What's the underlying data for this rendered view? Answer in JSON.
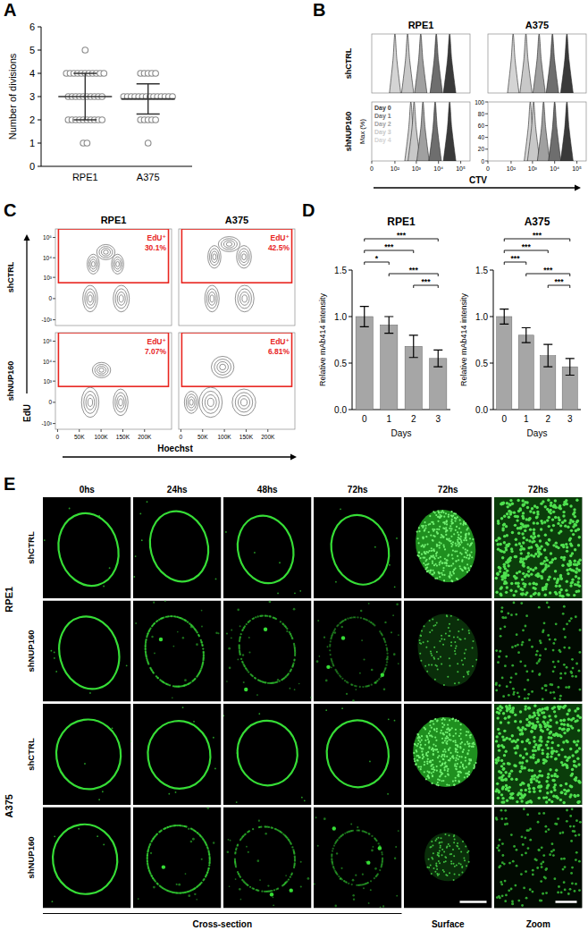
{
  "panel_labels": [
    "A",
    "B",
    "C",
    "D",
    "E"
  ],
  "chart_data": [
    {
      "type": "dot",
      "categories": [
        "RPE1",
        "A375"
      ],
      "y_label": "Number of divisions",
      "ylim": [
        0,
        6
      ],
      "yticks": [
        0,
        1,
        2,
        3,
        4,
        5,
        6
      ],
      "color": "#8a8a8a",
      "values": [
        [
          5,
          4,
          4,
          4,
          4,
          4,
          4,
          4,
          4,
          4,
          4,
          4,
          3,
          3,
          3,
          3,
          3,
          3,
          3,
          3,
          3,
          3,
          2,
          2,
          2,
          2,
          2,
          2,
          2,
          2,
          2,
          2,
          1,
          1
        ],
        [
          4,
          4,
          4,
          4,
          4,
          3,
          3,
          3,
          3,
          3,
          3,
          3,
          3,
          3,
          3,
          3,
          3,
          3,
          3,
          2,
          2,
          2,
          2,
          2,
          1
        ]
      ],
      "mean": [
        3.0,
        2.9
      ],
      "error": [
        1.0,
        0.65
      ]
    },
    {
      "type": "area",
      "title": "RPE1",
      "row_label": "shCTRL",
      "log": "x",
      "xlim": [
        0,
        262144
      ],
      "ylim": [
        0,
        100
      ],
      "series": [
        {
          "color": "#3a3a3a",
          "x": [
            16600,
            25120,
            31620,
            39810,
            60260
          ],
          "values": [
            0,
            55,
            100,
            55,
            0
          ]
        },
        {
          "color": "#6e6e6e",
          "x": [
            4170,
            6310,
            7940,
            10000,
            15140
          ],
          "values": [
            0,
            55,
            100,
            55,
            0
          ]
        },
        {
          "color": "#a0a0a0",
          "x": [
            832,
            1259,
            1585,
            1995,
            3020
          ],
          "values": [
            0,
            55,
            100,
            55,
            0
          ]
        },
        {
          "color": "#c8c8c8",
          "x": [
            209,
            316,
            398,
            501,
            759
          ],
          "values": [
            0,
            55,
            100,
            55,
            0
          ]
        },
        {
          "color": "#d4d4d4",
          "x": [
            52.5,
            79.4,
            100,
            126,
            191
          ],
          "values": [
            0,
            55,
            100,
            55,
            0
          ]
        }
      ]
    },
    {
      "type": "area",
      "title": "A375",
      "log": "x",
      "xlim": [
        0,
        262144
      ],
      "ylim": [
        0,
        100
      ],
      "series": [
        {
          "color": "#3a3a3a",
          "x": [
            18620,
            28180,
            35480,
            44670,
            67610
          ],
          "values": [
            0,
            55,
            100,
            55,
            0
          ]
        },
        {
          "color": "#6e6e6e",
          "x": [
            4170,
            6310,
            7940,
            10000,
            15140
          ],
          "values": [
            0,
            55,
            100,
            55,
            0
          ]
        },
        {
          "color": "#a0a0a0",
          "x": [
            1047,
            1585,
            1995,
            2512,
            3802
          ],
          "values": [
            0,
            55,
            100,
            55,
            0
          ]
        },
        {
          "color": "#c8c8c8",
          "x": [
            263,
            398,
            501,
            631,
            955
          ],
          "values": [
            0,
            55,
            100,
            55,
            0
          ]
        },
        {
          "color": "#d4d4d4",
          "x": [
            66.1,
            100,
            126,
            158,
            240
          ],
          "values": [
            0,
            55,
            100,
            55,
            0
          ]
        }
      ]
    },
    {
      "type": "area",
      "row_label": "shNUP160",
      "y_label": "Max (%)",
      "legend": "upper-left",
      "log": "x",
      "xlim": [
        0,
        262144
      ],
      "ylim": [
        0,
        100
      ],
      "xticks": [
        0,
        {
          "value": 100,
          "label": "10²"
        },
        {
          "value": 1000,
          "label": "10³"
        },
        {
          "value": 10000,
          "label": "10⁴"
        },
        {
          "value": 100000,
          "label": "10⁵"
        }
      ],
      "series": [
        {
          "name": "Day 0",
          "color": "#3a3a3a",
          "x": [
            16600,
            25120,
            31620,
            39810,
            60260
          ],
          "values": [
            0,
            55,
            100,
            55,
            0
          ]
        },
        {
          "name": "Day 1",
          "color": "#6e6e6e",
          "x": [
            3715,
            5623,
            7079,
            8913,
            13490
          ],
          "values": [
            0,
            55,
            100,
            55,
            0
          ]
        },
        {
          "name": "Day 2",
          "color": "#a0a0a0",
          "x": [
            1047,
            1585,
            1995,
            2512,
            3802
          ],
          "values": [
            0,
            55,
            100,
            55,
            0
          ]
        },
        {
          "name": "Day 3",
          "color": "#c8c8c8",
          "x": [
            417,
            631,
            794,
            1000,
            1514
          ],
          "values": [
            0,
            55,
            100,
            55,
            0
          ]
        },
        {
          "name": "Day 4",
          "color": "#d4d4d4",
          "x": [
            295,
            447,
            562,
            708,
            1072
          ],
          "values": [
            0,
            55,
            100,
            55,
            0
          ]
        }
      ]
    },
    {
      "type": "area",
      "x_label": "CTV",
      "log": "x",
      "xlim": [
        0,
        262144
      ],
      "ylim": [
        0,
        100
      ],
      "xticks": [
        0,
        {
          "value": 100,
          "label": "10²"
        },
        {
          "value": 1000,
          "label": "10³"
        },
        {
          "value": 10000,
          "label": "10⁴"
        },
        {
          "value": 100000,
          "label": "10⁵"
        }
      ],
      "yticks": [
        0,
        20,
        40,
        60,
        80,
        100
      ],
      "series": [
        {
          "color": "#3a3a3a",
          "x": [
            18620,
            28180,
            35480,
            44670,
            67610
          ],
          "values": [
            0,
            55,
            100,
            55,
            0
          ]
        },
        {
          "color": "#6e6e6e",
          "x": [
            5250,
            7940,
            10000,
            12590,
            19050
          ],
          "values": [
            0,
            55,
            100,
            55,
            0
          ]
        },
        {
          "color": "#a0a0a0",
          "x": [
            1660,
            2512,
            3162,
            3981,
            6026
          ],
          "values": [
            0,
            55,
            100,
            55,
            0
          ]
        },
        {
          "color": "#c8c8c8",
          "x": [
            589,
            891,
            1122,
            1413,
            2138
          ],
          "values": [
            0,
            55,
            100,
            55,
            0
          ]
        },
        {
          "color": "#d4d4d4",
          "x": [
            417,
            631,
            794,
            1000,
            1514
          ],
          "values": [
            0,
            55,
            100,
            55,
            0
          ]
        }
      ]
    },
    {
      "type": "contour",
      "title": "RPE1",
      "row_label": "shCTRL",
      "log": "y",
      "xlim": [
        -5000,
        262144
      ],
      "ylim": [
        -2000,
        262144
      ],
      "color": "#e8251f",
      "yticks": [
        {
          "value": -1000,
          "label": "-10³"
        },
        0,
        {
          "value": 1000,
          "label": "10³"
        },
        {
          "value": 10000,
          "label": "10⁴"
        },
        {
          "value": 100000,
          "label": "10⁵"
        }
      ],
      "gate": {
        "x": [
          2000,
          255000
        ],
        "y": [
          500,
          262144
        ]
      },
      "annotations": [
        "EdU⁺",
        "30.1%"
      ],
      "clusters": [
        {
          "x": [
            58000,
            92000
          ],
          "y": [
            -350,
            350
          ]
        },
        {
          "x": [
            128000,
            165000
          ],
          "y": [
            -350,
            350
          ]
        },
        {
          "x": [
            68000,
            96000
          ],
          "y": [
            1500,
            15000
          ]
        },
        {
          "x": [
            90000,
            132000
          ],
          "y": [
            8000,
            45000
          ]
        },
        {
          "x": [
            124000,
            152000
          ],
          "y": [
            1500,
            15000
          ]
        }
      ]
    },
    {
      "type": "contour",
      "title": "A375",
      "log": "y",
      "xlim": [
        -5000,
        262144
      ],
      "ylim": [
        -2000,
        262144
      ],
      "color": "#e8251f",
      "gate": {
        "x": [
          2000,
          255000
        ],
        "y": [
          500,
          262144
        ]
      },
      "annotations": [
        "EdU⁺",
        "42.5%"
      ],
      "clusters": [
        {
          "x": [
            55000,
            88000
          ],
          "y": [
            -350,
            350
          ]
        },
        {
          "x": [
            125000,
            168000
          ],
          "y": [
            -350,
            350
          ]
        },
        {
          "x": [
            62000,
            92000
          ],
          "y": [
            3000,
            40000
          ]
        },
        {
          "x": [
            86000,
            136000
          ],
          "y": [
            20000,
            110000
          ]
        },
        {
          "x": [
            128000,
            162000
          ],
          "y": [
            3000,
            40000
          ]
        }
      ]
    },
    {
      "type": "contour",
      "row_label": "shNUP160",
      "x_label": "Hoechst",
      "y_label": "EdU",
      "log": "y",
      "xlim": [
        -5000,
        262144
      ],
      "ylim": [
        -2000,
        262144
      ],
      "color": "#e8251f",
      "xticks": [
        0,
        {
          "value": 50000,
          "label": "50K"
        },
        {
          "value": 100000,
          "label": "100K"
        },
        {
          "value": 150000,
          "label": "150K"
        },
        {
          "value": 200000,
          "label": "200K"
        }
      ],
      "yticks": [
        {
          "value": -1000,
          "label": "-10³"
        },
        0,
        {
          "value": 1000,
          "label": "10³"
        },
        {
          "value": 10000,
          "label": "10⁴"
        },
        {
          "value": 100000,
          "label": "10⁵"
        }
      ],
      "gate": {
        "x": [
          2000,
          255000
        ],
        "y": [
          500,
          262144
        ]
      },
      "annotations": [
        "EdU⁺",
        "7.07%"
      ],
      "clusters": [
        {
          "x": [
            55000,
            95000
          ],
          "y": [
            -450,
            450
          ]
        },
        {
          "x": [
            128000,
            162000
          ],
          "y": [
            -350,
            350
          ]
        },
        {
          "x": [
            80000,
            122000
          ],
          "y": [
            1500,
            9000
          ]
        }
      ]
    },
    {
      "type": "contour",
      "log": "y",
      "xlim": [
        -5000,
        262144
      ],
      "ylim": [
        -2000,
        262144
      ],
      "color": "#e8251f",
      "xticks": [
        0,
        {
          "value": 50000,
          "label": "50K"
        },
        {
          "value": 100000,
          "label": "100K"
        },
        {
          "value": 150000,
          "label": "150K"
        },
        {
          "value": 200000,
          "label": "200K"
        }
      ],
      "gate": {
        "x": [
          2000,
          255000
        ],
        "y": [
          500,
          262144
        ]
      },
      "annotations": [
        "EdU⁺",
        "6.81%"
      ],
      "clusters": [
        {
          "x": [
            8000,
            40000
          ],
          "y": [
            -250,
            250
          ]
        },
        {
          "x": [
            42000,
            95000
          ],
          "y": [
            -450,
            450
          ]
        },
        {
          "x": [
            118000,
            172000
          ],
          "y": [
            -350,
            350
          ]
        },
        {
          "x": [
            70000,
            122000
          ],
          "y": [
            1500,
            18000
          ]
        }
      ]
    },
    {
      "type": "bar",
      "title": "RPE1",
      "categories": [
        "0",
        "1",
        "2",
        "3"
      ],
      "values": [
        1.0,
        0.91,
        0.68,
        0.55
      ],
      "error": [
        0.11,
        0.09,
        0.12,
        0.09
      ],
      "color": "#a6a6a6",
      "ylim": [
        0,
        1.5
      ],
      "yticks": [
        {
          "value": 0,
          "label": "0.0"
        },
        {
          "value": 0.5,
          "label": "0.5"
        },
        {
          "value": 1,
          "label": "1.0"
        },
        {
          "value": 1.5,
          "label": "1.5"
        }
      ],
      "y_label": "Relative mAb414 intensity",
      "x_label": "Days",
      "comparisons": [
        {
          "pair": [
            "0",
            "3"
          ],
          "label": "***"
        },
        {
          "pair": [
            "0",
            "2"
          ],
          "label": "***"
        },
        {
          "pair": [
            "0",
            "1"
          ],
          "label": "*"
        },
        {
          "pair": [
            "1",
            "3"
          ],
          "label": "***"
        },
        {
          "pair": [
            "2",
            "3"
          ],
          "label": "***"
        }
      ]
    },
    {
      "type": "bar",
      "title": "A375",
      "categories": [
        "0",
        "1",
        "2",
        "3"
      ],
      "values": [
        1.0,
        0.8,
        0.58,
        0.46
      ],
      "error": [
        0.08,
        0.08,
        0.12,
        0.09
      ],
      "color": "#a6a6a6",
      "ylim": [
        0,
        1.5
      ],
      "yticks": [
        {
          "value": 0,
          "label": "0.0"
        },
        {
          "value": 0.5,
          "label": "0.5"
        },
        {
          "value": 1,
          "label": "1.0"
        },
        {
          "value": 1.5,
          "label": "1.5"
        }
      ],
      "y_label": "Relative mAb414 intensity",
      "x_label": "Days",
      "comparisons": [
        {
          "pair": [
            "0",
            "3"
          ],
          "label": "***"
        },
        {
          "pair": [
            "0",
            "2"
          ],
          "label": "***"
        },
        {
          "pair": [
            "0",
            "1"
          ],
          "label": "***"
        },
        {
          "pair": [
            "1",
            "3"
          ],
          "label": "***"
        },
        {
          "pair": [
            "2",
            "3"
          ],
          "label": "***"
        }
      ]
    }
  ],
  "microscopy": {
    "columns": [
      "0hs",
      "24hs",
      "48hs",
      "72hs",
      "72hs",
      "72hs"
    ],
    "groups": [
      {
        "cell_line": "RPE1",
        "conditions": [
          "shCTRL",
          "shNUP160"
        ]
      },
      {
        "cell_line": "A375",
        "conditions": [
          "shCTRL",
          "shNUP160"
        ]
      }
    ],
    "footer": [
      "Cross-section",
      "Surface",
      "Zoom"
    ]
  }
}
